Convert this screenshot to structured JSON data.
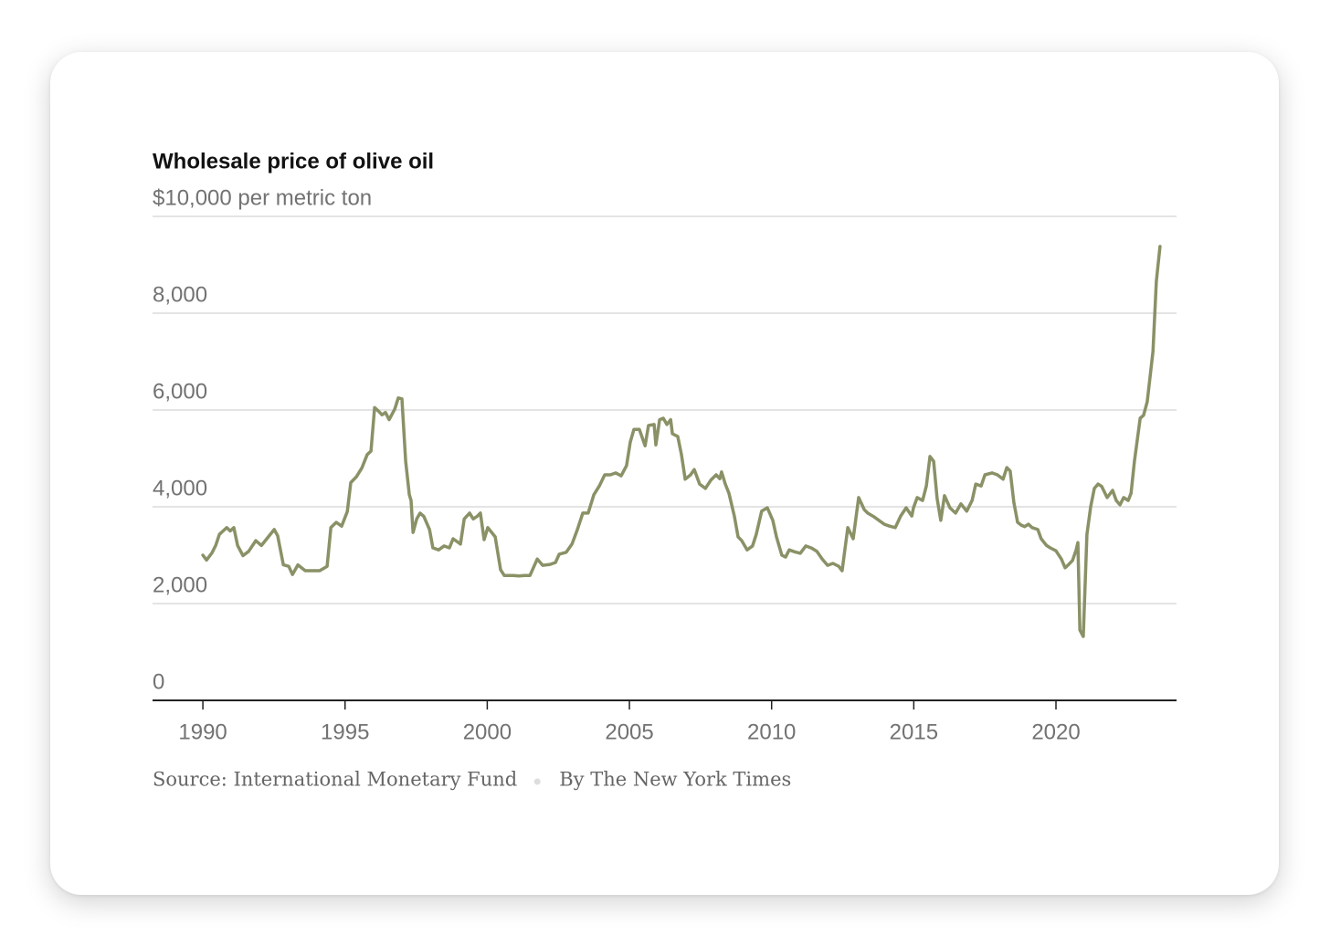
{
  "chart_data": {
    "type": "line",
    "title": "Wholesale price of olive oil",
    "source": "Source: International Monetary Fund",
    "credit": "By The New York Times",
    "color": "#8a9166",
    "grid": true,
    "xlim": [
      1988.23,
      2024.24
    ],
    "xticks": [
      1990,
      1995,
      2000,
      2005,
      2010,
      2015,
      2020
    ],
    "ylim": [
      0,
      10000
    ],
    "yticks": [
      0,
      {
        "value": 2000,
        "label": "2,000"
      },
      {
        "value": 4000,
        "label": "4,000"
      },
      {
        "value": 6000,
        "label": "6,000"
      },
      {
        "value": 8000,
        "label": "8,000"
      },
      {
        "value": 10000,
        "label": "$10,000 per metric ton"
      }
    ],
    "x": [
      1990.0,
      1990.13,
      1990.32,
      1990.45,
      1990.58,
      1990.71,
      1990.84,
      1990.96,
      1991.09,
      1991.22,
      1991.41,
      1991.61,
      1991.86,
      1992.06,
      1992.25,
      1992.51,
      1992.63,
      1992.83,
      1993.02,
      1993.15,
      1993.34,
      1993.6,
      1993.85,
      1994.11,
      1994.37,
      1994.5,
      1994.69,
      1994.88,
      1995.08,
      1995.2,
      1995.4,
      1995.59,
      1995.78,
      1995.91,
      1996.04,
      1996.17,
      1996.3,
      1996.42,
      1996.55,
      1996.75,
      1996.87,
      1997.0,
      1997.13,
      1997.26,
      1997.32,
      1997.39,
      1997.52,
      1997.64,
      1997.77,
      1997.97,
      1998.09,
      1998.29,
      1998.48,
      1998.67,
      1998.8,
      1999.06,
      1999.19,
      1999.38,
      1999.51,
      1999.64,
      1999.76,
      1999.89,
      2000.02,
      2000.28,
      2000.47,
      2000.6,
      2000.73,
      2000.92,
      2001.11,
      2001.31,
      2001.5,
      2001.76,
      2001.95,
      2002.21,
      2002.4,
      2002.53,
      2002.78,
      2002.98,
      2003.17,
      2003.36,
      2003.55,
      2003.75,
      2003.94,
      2004.13,
      2004.33,
      2004.52,
      2004.71,
      2004.9,
      2005.03,
      2005.16,
      2005.35,
      2005.55,
      2005.67,
      2005.87,
      2005.93,
      2006.06,
      2006.19,
      2006.32,
      2006.45,
      2006.51,
      2006.7,
      2006.83,
      2006.96,
      2007.15,
      2007.28,
      2007.47,
      2007.67,
      2007.86,
      2008.05,
      2008.18,
      2008.24,
      2008.37,
      2008.5,
      2008.69,
      2008.82,
      2008.95,
      2009.14,
      2009.33,
      2009.46,
      2009.65,
      2009.85,
      2010.04,
      2010.17,
      2010.36,
      2010.49,
      2010.62,
      2010.81,
      2011.01,
      2011.2,
      2011.39,
      2011.59,
      2011.78,
      2011.97,
      2012.16,
      2012.36,
      2012.48,
      2012.68,
      2012.87,
      2013.06,
      2013.26,
      2013.38,
      2013.58,
      2013.77,
      2013.96,
      2014.15,
      2014.35,
      2014.54,
      2014.73,
      2014.93,
      2014.99,
      2015.12,
      2015.31,
      2015.44,
      2015.57,
      2015.7,
      2015.82,
      2015.95,
      2016.08,
      2016.27,
      2016.47,
      2016.66,
      2016.86,
      2017.05,
      2017.18,
      2017.37,
      2017.5,
      2017.75,
      2017.94,
      2018.14,
      2018.27,
      2018.39,
      2018.52,
      2018.65,
      2018.78,
      2018.9,
      2019.03,
      2019.16,
      2019.36,
      2019.48,
      2019.67,
      2019.8,
      2020.0,
      2020.19,
      2020.32,
      2020.45,
      2020.58,
      2020.71,
      2020.77,
      2020.84,
      2020.96,
      2021.09,
      2021.22,
      2021.35,
      2021.48,
      2021.61,
      2021.8,
      2021.99,
      2022.12,
      2022.25,
      2022.38,
      2022.54,
      2022.64,
      2022.76,
      2022.96,
      2023.08,
      2023.21,
      2023.41,
      2023.53,
      2023.66
    ],
    "values": [
      3000,
      2900,
      3050,
      3200,
      3430,
      3500,
      3570,
      3500,
      3570,
      3200,
      2990,
      3080,
      3300,
      3200,
      3340,
      3530,
      3400,
      2800,
      2770,
      2600,
      2800,
      2680,
      2680,
      2680,
      2770,
      3570,
      3680,
      3600,
      3900,
      4500,
      4620,
      4800,
      5080,
      5150,
      6050,
      5980,
      5900,
      5950,
      5800,
      6020,
      6250,
      6230,
      4940,
      4250,
      4130,
      3470,
      3750,
      3870,
      3800,
      3530,
      3150,
      3110,
      3190,
      3150,
      3340,
      3230,
      3750,
      3870,
      3750,
      3800,
      3870,
      3320,
      3570,
      3380,
      2700,
      2580,
      2580,
      2580,
      2570,
      2580,
      2580,
      2920,
      2790,
      2810,
      2850,
      3020,
      3060,
      3230,
      3530,
      3870,
      3870,
      4250,
      4430,
      4660,
      4660,
      4700,
      4640,
      4850,
      5340,
      5600,
      5600,
      5260,
      5680,
      5700,
      5280,
      5800,
      5830,
      5700,
      5800,
      5510,
      5450,
      5080,
      4570,
      4660,
      4770,
      4470,
      4380,
      4550,
      4660,
      4580,
      4720,
      4470,
      4280,
      3810,
      3380,
      3300,
      3110,
      3190,
      3430,
      3910,
      3980,
      3720,
      3380,
      3000,
      2960,
      3110,
      3070,
      3040,
      3190,
      3150,
      3080,
      2920,
      2790,
      2830,
      2770,
      2680,
      3570,
      3340,
      4190,
      3940,
      3870,
      3800,
      3720,
      3640,
      3600,
      3570,
      3810,
      3980,
      3810,
      3980,
      4190,
      4130,
      4430,
      5040,
      4940,
      4170,
      3720,
      4230,
      3980,
      3870,
      4060,
      3910,
      4130,
      4470,
      4430,
      4660,
      4700,
      4660,
      4570,
      4810,
      4740,
      4090,
      3680,
      3620,
      3590,
      3640,
      3570,
      3530,
      3340,
      3200,
      3150,
      3090,
      2920,
      2740,
      2810,
      2890,
      3110,
      3260,
      1450,
      1320,
      3430,
      4000,
      4380,
      4470,
      4420,
      4190,
      4340,
      4130,
      4040,
      4190,
      4130,
      4280,
      4940,
      5830,
      5890,
      6170,
      7210,
      8660,
      9380
    ]
  }
}
